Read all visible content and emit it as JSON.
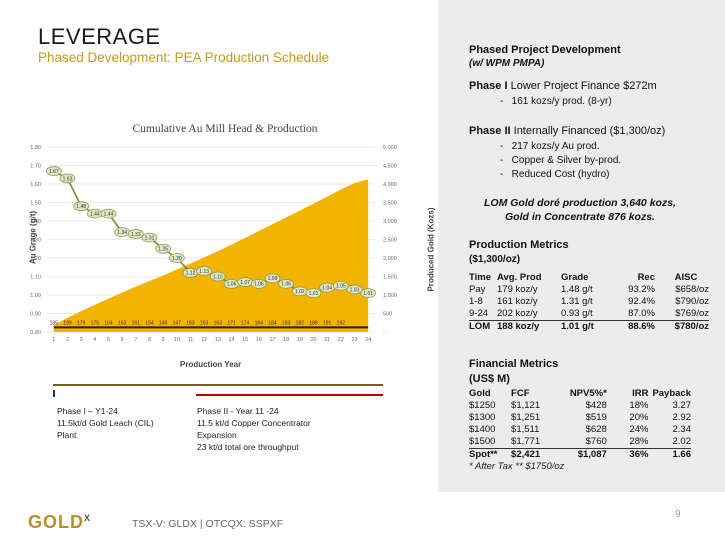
{
  "header": {
    "title": "LEVERAGE",
    "subtitle": "Phased Development: PEA Production Schedule"
  },
  "chart_data": {
    "type": "area",
    "title": "Cumulative Au Mill Head & Production",
    "xlabel": "Production Year",
    "ylabel_left": "Au Grage (g/t)",
    "ylabel_right": "Produced Gold (Kozs)",
    "x": [
      1,
      2,
      3,
      4,
      5,
      6,
      7,
      8,
      9,
      10,
      11,
      12,
      13,
      14,
      15,
      16,
      17,
      18,
      19,
      20,
      21,
      22,
      23,
      24
    ],
    "y_left_ticks": [
      "0.80",
      "0.90",
      "1.00",
      "1.10",
      "1.20",
      "1.30",
      "1.40",
      "1.50",
      "1.60",
      "1.70",
      "1.80"
    ],
    "y_left_range": [
      0.8,
      1.8
    ],
    "y_right_ticks": [
      "-",
      "500",
      "1,000",
      "1,500",
      "2,000",
      "2,500",
      "3,000",
      "3,500",
      "4,000",
      "4,500",
      "5,000"
    ],
    "y_right_range": [
      0,
      5000
    ],
    "grid": true,
    "series": [
      {
        "type": "area",
        "color": "#f2b400",
        "values": [
          185,
          384,
          563,
          738,
          902,
          1065,
          1226,
          1380,
          1527,
          1690,
          1853,
          2016,
          2187,
          2361,
          2545,
          2729,
          2912,
          3097,
          3279,
          3468,
          3659,
          3851,
          4028,
          4130
        ]
      },
      {
        "type": "line",
        "color": "#7a8c2e",
        "values": [
          1.67,
          1.63,
          1.48,
          1.44,
          1.44,
          1.34,
          1.33,
          1.31,
          1.25,
          1.2,
          1.12,
          1.13,
          1.1,
          1.06,
          1.07,
          1.06,
          1.09,
          1.06,
          1.02,
          1.01,
          1.04,
          1.05,
          1.03,
          1.01
        ],
        "labels": [
          "1.67",
          "1.63",
          "1.48",
          "1.44",
          "1.44",
          "1.34",
          "1.33",
          "1.31",
          "1.25",
          "1.20",
          "1.12",
          "1.13",
          "1.10",
          "1.06",
          "1.07",
          "1.06",
          "1.09",
          "1.06",
          "1.02",
          "1.01",
          "1.04",
          "1.05",
          "1.03",
          "1.01"
        ]
      },
      {
        "type": "line",
        "color": "#222222",
        "labels": [
          "185",
          "199",
          "179",
          "175",
          "164",
          "163",
          "161",
          "154",
          "148",
          "147",
          "163",
          "163",
          "163",
          "171",
          "174",
          "184",
          "184",
          "183",
          "182",
          "189",
          "191",
          "192",
          "",
          ""
        ]
      }
    ]
  },
  "timeline": {
    "phase1": [
      "Phase I – Y1-24",
      "11.5kt/d Gold Leach (CIL)",
      "Plant"
    ],
    "phase2": [
      "Phase II  - Year 11 -24",
      "11.5 kt/d Copper Concentrator",
      "Expansion",
      "23 kt/d total ore throughput"
    ]
  },
  "right": {
    "heading": "Phased Project Development",
    "heading_sub": "(w/ WPM PMPA)",
    "phase1_label": "Phase I",
    "phase1_text": " Lower Project Finance $272m",
    "phase1_bullets": [
      "161 kozs/y prod. (8-yr)"
    ],
    "phase2_label": "Phase II",
    "phase2_text": " Internally Financed ($1,300/oz)",
    "phase2_bullets": [
      "217 kozs/y Au prod.",
      "Copper & Silver by-prod.",
      "Reduced Cost (hydro)"
    ],
    "lom_line1": "LOM Gold doré production 3,640 kozs,",
    "lom_line2": "Gold in Concentrate 876 kozs.",
    "prod_heading": "Production Metrics",
    "prod_sub": "($1,300/oz)",
    "prod_cols": [
      "Time",
      "Avg. Prod",
      "Grade",
      "Rec",
      "AISC"
    ],
    "prod_rows": [
      [
        "Pay",
        "179 koz/y",
        "1.48 g/t",
        "93.2%",
        "$658/oz"
      ],
      [
        "1-8",
        "161 koz/y",
        "1.31 g/t",
        "92.4%",
        "$790/oz"
      ],
      [
        "9-24",
        "202 koz/y",
        "0.93 g/t",
        "87.0%",
        "$769/oz"
      ],
      [
        "LOM",
        "188 koz/y",
        "1.01 g/t",
        "88.6%",
        "$780/oz"
      ]
    ],
    "fin_heading": "Financial Metrics",
    "fin_sub": "(US$ M)",
    "fin_cols": [
      "Gold",
      "FCF",
      "NPV5%*",
      "IRR",
      "Payback"
    ],
    "fin_rows": [
      [
        "$1250",
        "$1,121",
        "$428",
        "18%",
        "3.27"
      ],
      [
        "$1300",
        "$1,251",
        "$519",
        "20%",
        "2.92"
      ],
      [
        "$1400",
        "$1,511",
        "$628",
        "24%",
        "2.34"
      ],
      [
        "$1500",
        "$1,771",
        "$760",
        "28%",
        "2.02"
      ],
      [
        "Spot**",
        "$2,421",
        "$1,087",
        "36%",
        "1.66"
      ]
    ],
    "note": "* After Tax ** $1750/oz"
  },
  "footer": {
    "logo": "GOLD",
    "logo_sup": "X",
    "ticker": "TSX-V: GLDX | OTCQX: SSPXF",
    "page": "9"
  }
}
